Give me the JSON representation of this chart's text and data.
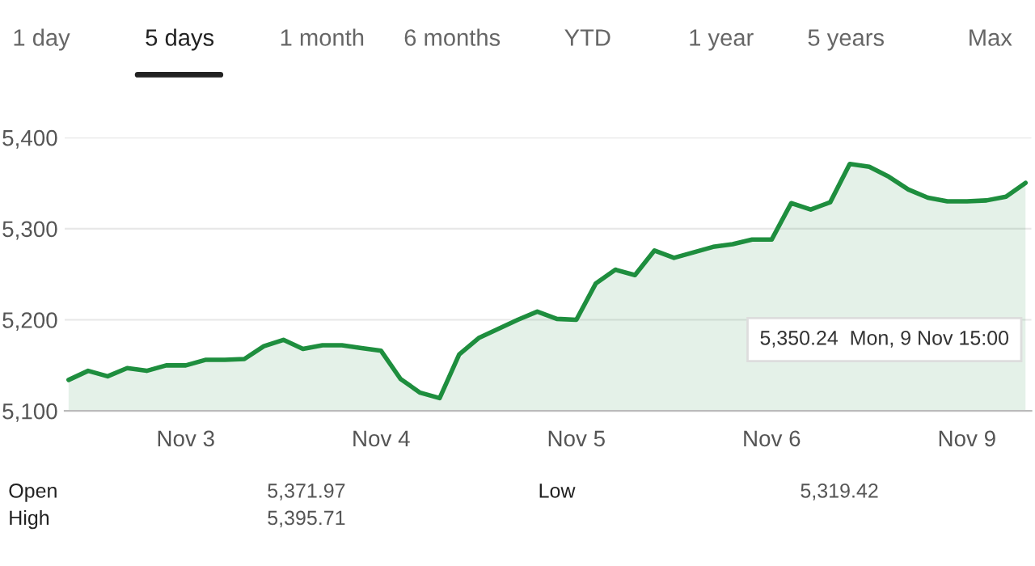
{
  "chart_data": {
    "type": "area",
    "categories": [
      null,
      null,
      null,
      null,
      null,
      null,
      "Nov 3",
      null,
      null,
      null,
      null,
      null,
      null,
      null,
      null,
      null,
      "Nov 4",
      null,
      null,
      null,
      null,
      null,
      null,
      null,
      null,
      null,
      "Nov 5",
      null,
      null,
      null,
      null,
      null,
      null,
      null,
      null,
      null,
      "Nov 6",
      null,
      null,
      null,
      null,
      null,
      null,
      null,
      null,
      null,
      "Nov 9",
      null,
      null,
      null
    ],
    "series": [
      {
        "color": "#1e8e3e",
        "values": [
          5134,
          5144,
          5138,
          5147,
          5144,
          5150,
          5150,
          5156,
          5156,
          5157,
          5171,
          5178,
          5168,
          5172,
          5172,
          5169,
          5166,
          5135,
          5120,
          5114,
          5162,
          5180,
          5190,
          5200,
          5209,
          5201,
          5200,
          5240,
          5255,
          5249,
          5276,
          5268,
          5274,
          5280,
          5283,
          5288,
          5288,
          5328,
          5321,
          5329,
          5371,
          5368,
          5357,
          5343,
          5334,
          5330,
          5330,
          5331,
          5335,
          5350.24
        ]
      }
    ],
    "ylim": [
      5100,
      5400
    ],
    "yticks": [
      {
        "value": 5100,
        "label": "5,100"
      },
      {
        "value": 5200,
        "label": "5,200"
      },
      {
        "value": 5300,
        "label": "5,300"
      },
      {
        "value": 5400,
        "label": "5,400"
      }
    ],
    "grid": "y",
    "annotations": [
      "5,350.24  Mon, 9 Nov 15:00",
      "1 day",
      "5 days",
      "1 month",
      "6 months",
      "YTD",
      "1 year",
      "5 years",
      "Max",
      "Open",
      "5,371.97",
      "High",
      "5,395.71",
      "Low",
      "5,319.42"
    ]
  }
}
